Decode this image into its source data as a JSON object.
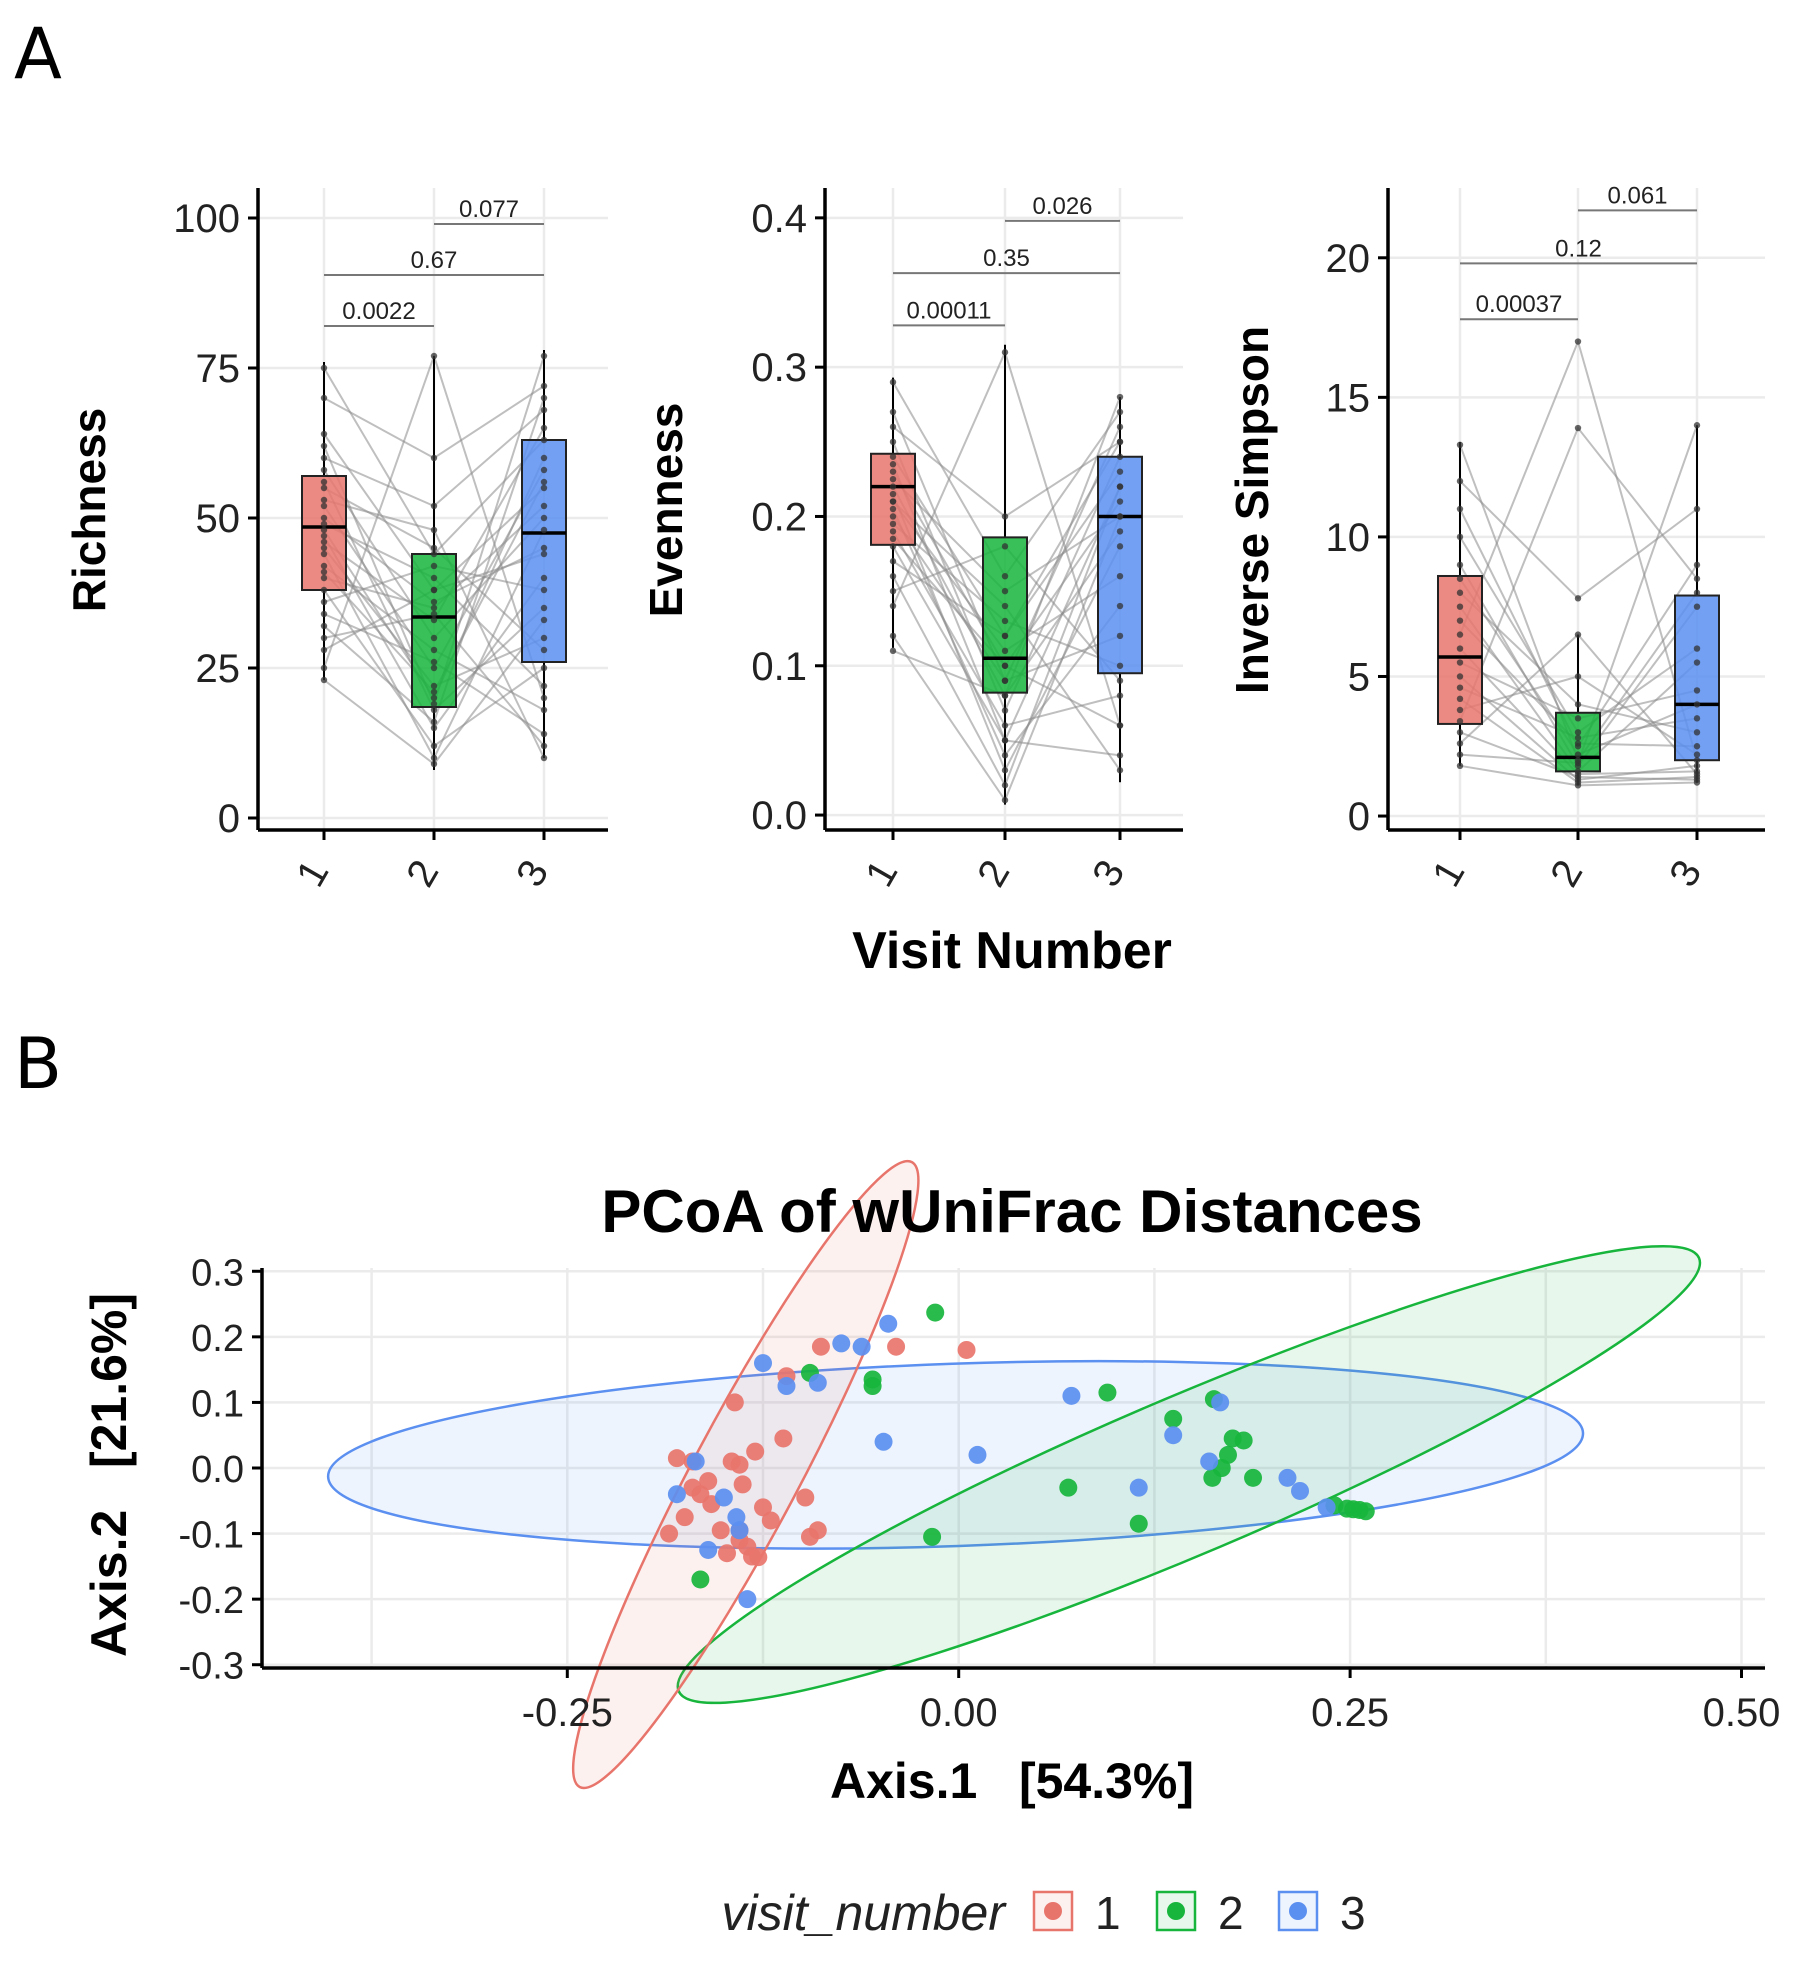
{
  "panel_a_label": "A",
  "panel_b_label": "B",
  "colors": {
    "1": "#e8756c",
    "2": "#17b53c",
    "3": "#5b8ff0"
  },
  "chart_data": [
    {
      "type": "box",
      "panel": "A",
      "ylabel": "Richness",
      "xlabel": "",
      "categories": [
        "1",
        "2",
        "3"
      ],
      "ylim": [
        -2,
        105
      ],
      "yticks": [
        0,
        25,
        50,
        75,
        100
      ],
      "boxes": [
        {
          "name": "1",
          "whisker_low": 23,
          "q1": 38,
          "median": 48.5,
          "q3": 57,
          "whisker_high": 76
        },
        {
          "name": "2",
          "whisker_low": 8,
          "q1": 18.5,
          "median": 33.5,
          "q3": 44,
          "whisker_high": 77
        },
        {
          "name": "3",
          "whisker_low": 10,
          "q1": 26,
          "median": 47.5,
          "q3": 63,
          "whisker_high": 78
        }
      ],
      "comparisons": [
        {
          "from": "1",
          "to": "2",
          "label": "0.0022",
          "y": 82
        },
        {
          "from": "1",
          "to": "3",
          "label": "0.67",
          "y": 90.5
        },
        {
          "from": "2",
          "to": "3",
          "label": "0.077",
          "y": 99
        }
      ],
      "paired_points": [
        [
          75,
          44,
          63
        ],
        [
          70,
          60,
          72
        ],
        [
          64,
          38,
          55
        ],
        [
          60,
          52,
          68
        ],
        [
          58,
          30,
          50
        ],
        [
          56,
          18,
          35
        ],
        [
          55,
          45,
          28
        ],
        [
          52,
          25,
          58
        ],
        [
          50,
          36,
          45
        ],
        [
          49,
          40,
          22
        ],
        [
          48,
          20,
          60
        ],
        [
          47,
          15,
          40
        ],
        [
          46,
          33,
          65
        ],
        [
          45,
          22,
          30
        ],
        [
          44,
          10,
          48
        ],
        [
          42,
          28,
          18
        ],
        [
          40,
          35,
          52
        ],
        [
          38,
          12,
          25
        ],
        [
          36,
          42,
          38
        ],
        [
          34,
          26,
          14
        ],
        [
          32,
          16,
          70
        ],
        [
          30,
          34,
          12
        ],
        [
          28,
          38,
          44
        ],
        [
          25,
          77,
          20
        ],
        [
          23,
          9,
          33
        ],
        [
          62,
          19,
          77
        ],
        [
          53,
          48,
          10
        ],
        [
          41,
          21,
          56
        ]
      ]
    },
    {
      "type": "box",
      "panel": "A",
      "ylabel": "Evenness",
      "xlabel": "Visit Number",
      "categories": [
        "1",
        "2",
        "3"
      ],
      "ylim": [
        -0.01,
        0.42
      ],
      "yticks": [
        0.0,
        0.1,
        0.2,
        0.3,
        0.4
      ],
      "yticklabels": [
        "0.0",
        "0.1",
        "0.2",
        "0.3",
        "0.4"
      ],
      "boxes": [
        {
          "name": "1",
          "whisker_low": 0.112,
          "q1": 0.181,
          "median": 0.22,
          "q3": 0.242,
          "whisker_high": 0.293
        },
        {
          "name": "2",
          "whisker_low": 0.007,
          "q1": 0.082,
          "median": 0.105,
          "q3": 0.186,
          "whisker_high": 0.315
        },
        {
          "name": "3",
          "whisker_low": 0.022,
          "q1": 0.095,
          "median": 0.2,
          "q3": 0.24,
          "whisker_high": 0.28
        }
      ],
      "comparisons": [
        {
          "from": "1",
          "to": "2",
          "label": "0.00011",
          "y": 0.328
        },
        {
          "from": "1",
          "to": "3",
          "label": "0.35",
          "y": 0.363
        },
        {
          "from": "2",
          "to": "3",
          "label": "0.026",
          "y": 0.398
        }
      ],
      "paired_points": [
        [
          0.29,
          0.16,
          0.27
        ],
        [
          0.27,
          0.09,
          0.26
        ],
        [
          0.26,
          0.2,
          0.25
        ],
        [
          0.25,
          0.07,
          0.24
        ],
        [
          0.24,
          0.12,
          0.23
        ],
        [
          0.235,
          0.05,
          0.22
        ],
        [
          0.23,
          0.1,
          0.21
        ],
        [
          0.225,
          0.15,
          0.2
        ],
        [
          0.22,
          0.08,
          0.19
        ],
        [
          0.215,
          0.03,
          0.18
        ],
        [
          0.21,
          0.11,
          0.16
        ],
        [
          0.205,
          0.04,
          0.14
        ],
        [
          0.2,
          0.09,
          0.12
        ],
        [
          0.195,
          0.13,
          0.1
        ],
        [
          0.19,
          0.06,
          0.08
        ],
        [
          0.185,
          0.1,
          0.06
        ],
        [
          0.18,
          0.05,
          0.04
        ],
        [
          0.17,
          0.12,
          0.25
        ],
        [
          0.16,
          0.02,
          0.22
        ],
        [
          0.15,
          0.18,
          0.09
        ],
        [
          0.14,
          0.31,
          0.06
        ],
        [
          0.12,
          0.01,
          0.2
        ],
        [
          0.11,
          0.08,
          0.28
        ],
        [
          0.21,
          0.14,
          0.03
        ]
      ]
    },
    {
      "type": "box",
      "panel": "A",
      "ylabel": "Inverse Simpson",
      "xlabel": "",
      "categories": [
        "1",
        "2",
        "3"
      ],
      "ylim": [
        -0.5,
        22.5
      ],
      "yticks": [
        0,
        5,
        10,
        15,
        20
      ],
      "boxes": [
        {
          "name": "1",
          "whisker_low": 1.8,
          "q1": 3.3,
          "median": 5.7,
          "q3": 8.6,
          "whisker_high": 13.4
        },
        {
          "name": "2",
          "whisker_low": 1.1,
          "q1": 1.6,
          "median": 2.1,
          "q3": 3.7,
          "whisker_high": 6.5
        },
        {
          "name": "3",
          "whisker_low": 1.2,
          "q1": 2.0,
          "median": 4.0,
          "q3": 7.9,
          "whisker_high": 14.0
        }
      ],
      "comparisons": [
        {
          "from": "1",
          "to": "2",
          "label": "0.00037",
          "y": 17.8
        },
        {
          "from": "1",
          "to": "3",
          "label": "0.12",
          "y": 19.8
        },
        {
          "from": "2",
          "to": "3",
          "label": "0.061",
          "y": 21.7
        }
      ],
      "paired_points": [
        [
          13.3,
          2.0,
          8.0
        ],
        [
          12.0,
          7.8,
          11.0
        ],
        [
          11.0,
          2.5,
          9.0
        ],
        [
          10.0,
          3.0,
          6.0
        ],
        [
          9.0,
          1.8,
          7.5
        ],
        [
          8.5,
          2.2,
          4.0
        ],
        [
          8.0,
          4.0,
          3.0
        ],
        [
          7.5,
          1.6,
          5.5
        ],
        [
          7.0,
          2.6,
          2.5
        ],
        [
          6.5,
          17.0,
          2.0
        ],
        [
          6.0,
          1.5,
          1.6
        ],
        [
          5.5,
          3.5,
          4.5
        ],
        [
          5.0,
          1.3,
          1.8
        ],
        [
          4.6,
          2.8,
          3.5
        ],
        [
          4.2,
          1.2,
          1.4
        ],
        [
          3.8,
          5.0,
          2.2
        ],
        [
          3.4,
          13.9,
          8.5
        ],
        [
          3.0,
          1.4,
          1.3
        ],
        [
          2.6,
          6.5,
          1.5
        ],
        [
          2.2,
          1.9,
          14.0
        ],
        [
          1.8,
          1.1,
          1.2
        ]
      ]
    },
    {
      "type": "scatter",
      "panel": "B",
      "title": "PCoA of wUniFrac Distances",
      "xlabel": "Axis.1   [54.3%]",
      "ylabel": "Axis.2   [21.6%]",
      "xlim": [
        -0.445,
        0.515
      ],
      "ylim": [
        -0.305,
        0.305
      ],
      "xticks": [
        -0.25,
        0.0,
        0.25,
        0.5
      ],
      "xticklabels": [
        "-0.25",
        "0.00",
        "0.25",
        "0.50"
      ],
      "yticks": [
        0.3,
        0.2,
        0.1,
        0.0,
        -0.1,
        -0.2,
        -0.3
      ],
      "yticklabels": [
        "0.3",
        "0.2",
        "0.1",
        "0.0",
        "-0.1",
        "-0.2",
        "-0.3"
      ],
      "legend": {
        "title": "visit_number",
        "entries": [
          "1",
          "2",
          "3"
        ],
        "position": "bottom"
      },
      "ellipses": [
        {
          "group": "1",
          "cx": -0.136,
          "cy": -0.01,
          "rx": 0.226,
          "ry": 0.081,
          "angle_deg": -62
        },
        {
          "group": "2",
          "cx": 0.147,
          "cy": -0.01,
          "rx": 0.354,
          "ry": 0.12,
          "angle_deg": -23
        },
        {
          "group": "3",
          "cx": -0.002,
          "cy": 0.02,
          "rx": 0.401,
          "ry": 0.139,
          "angle_deg": -2
        }
      ],
      "series": [
        {
          "name": "1",
          "points": [
            [
              -0.185,
              -0.1
            ],
            [
              -0.175,
              -0.075
            ],
            [
              -0.18,
              0.015
            ],
            [
              -0.17,
              0.01
            ],
            [
              -0.17,
              -0.03
            ],
            [
              -0.165,
              -0.04
            ],
            [
              -0.16,
              -0.02
            ],
            [
              -0.158,
              -0.055
            ],
            [
              -0.152,
              -0.095
            ],
            [
              -0.148,
              -0.13
            ],
            [
              -0.145,
              0.01
            ],
            [
              -0.14,
              -0.095
            ],
            [
              -0.14,
              -0.11
            ],
            [
              -0.135,
              -0.12
            ],
            [
              -0.132,
              -0.135
            ],
            [
              -0.128,
              -0.136
            ],
            [
              -0.143,
              0.1
            ],
            [
              -0.14,
              0.005
            ],
            [
              -0.138,
              -0.025
            ],
            [
              -0.13,
              0.025
            ],
            [
              -0.125,
              -0.06
            ],
            [
              -0.12,
              -0.08
            ],
            [
              -0.112,
              0.045
            ],
            [
              -0.11,
              0.14
            ],
            [
              -0.098,
              -0.045
            ],
            [
              -0.095,
              -0.105
            ],
            [
              -0.09,
              -0.095
            ],
            [
              -0.088,
              0.185
            ],
            [
              -0.04,
              0.185
            ],
            [
              0.005,
              0.18
            ]
          ]
        },
        {
          "name": "2",
          "points": [
            [
              -0.165,
              -0.17
            ],
            [
              -0.095,
              0.145
            ],
            [
              -0.055,
              0.135
            ],
            [
              -0.055,
              0.125
            ],
            [
              -0.017,
              -0.105
            ],
            [
              -0.015,
              0.237
            ],
            [
              0.07,
              -0.03
            ],
            [
              0.095,
              0.115
            ],
            [
              0.115,
              -0.085
            ],
            [
              0.137,
              0.075
            ],
            [
              0.163,
              0.105
            ],
            [
              0.162,
              -0.015
            ],
            [
              0.168,
              0.0
            ],
            [
              0.172,
              0.02
            ],
            [
              0.175,
              0.045
            ],
            [
              0.182,
              0.042
            ],
            [
              0.188,
              -0.015
            ],
            [
              0.24,
              -0.057
            ],
            [
              0.248,
              -0.062
            ],
            [
              0.252,
              -0.063
            ],
            [
              0.256,
              -0.064
            ],
            [
              0.26,
              -0.066
            ]
          ]
        },
        {
          "name": "3",
          "points": [
            [
              -0.18,
              -0.04
            ],
            [
              -0.168,
              0.01
            ],
            [
              -0.16,
              -0.125
            ],
            [
              -0.15,
              -0.045
            ],
            [
              -0.142,
              -0.075
            ],
            [
              -0.14,
              -0.095
            ],
            [
              -0.135,
              -0.2
            ],
            [
              -0.125,
              0.16
            ],
            [
              -0.11,
              0.125
            ],
            [
              -0.09,
              0.13
            ],
            [
              -0.075,
              0.19
            ],
            [
              -0.062,
              0.185
            ],
            [
              -0.045,
              0.22
            ],
            [
              -0.048,
              0.04
            ],
            [
              0.012,
              0.02
            ],
            [
              0.072,
              0.11
            ],
            [
              0.115,
              -0.03
            ],
            [
              0.137,
              0.05
            ],
            [
              0.16,
              0.01
            ],
            [
              0.167,
              0.1
            ],
            [
              0.21,
              -0.015
            ],
            [
              0.218,
              -0.035
            ],
            [
              0.235,
              -0.06
            ]
          ]
        }
      ]
    }
  ]
}
